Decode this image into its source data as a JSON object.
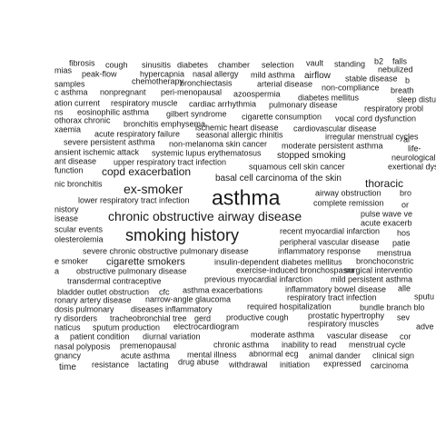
{
  "cloud": {
    "words": [
      "fibrosis",
      "cough",
      "sinusitis",
      "diabetes",
      "chamber",
      "selection",
      "vault",
      "standing",
      "b2",
      "falls",
      "mias",
      "peak-flow",
      "hypercapnia",
      "nasal allergy",
      "mild asthma",
      "airflow",
      "stable disease",
      "nebulized",
      "b",
      "samples",
      "chemotherapy",
      "bronchiectasis",
      "arterial disease",
      "non-compliance",
      "breath",
      "c asthma",
      "nonpregnant",
      "peri-menopausal",
      "azoospermia",
      "diabetes mellitus",
      "sleep distu",
      "ation current",
      "respiratory muscle",
      "cardiac arrhythmia",
      "pulmonary disease",
      "respiratory probl",
      "ns",
      "eosinophilic asthma",
      "gilbert syndrome",
      "cigarette consumption",
      "vocal cord dysfunction",
      "othorax chronic",
      "bronchitis emphysema",
      "ischemic heart disease",
      "cardiovascular disease",
      "xaemia",
      "acute respiratory failure",
      "seasonal allergic rhinitis",
      "irregular menstrual cycles",
      "al",
      "severe persistent asthma",
      "non-melanoma skin cancer",
      "moderate persistent asthma",
      "life-",
      "ansient ischemic attack",
      "systemic lupus erythematosus",
      "stopped smoking",
      "neurological",
      "ant disease",
      "upper respiratory tract infection",
      "squamous cell skin cancer",
      "exertional dys",
      "function",
      "copd exacerbation",
      "basal cell carcinoma of the skin",
      "thoracic",
      "nic bronchitis",
      "ex-smoker",
      "asthma",
      "airway obstruction",
      "bro",
      "lower respiratory tract infection",
      "complete remission",
      "or",
      "nistory",
      "chronic obstructive airway disease",
      "pulse wave ve",
      "isease",
      "acute exacerb",
      "scular events",
      "recent myocardial infarction",
      "hos",
      "olesterolemia",
      "smoking history",
      "peripheral vascular disease",
      "patie",
      "severe chronic obstructive pulmonary disease",
      "inflammatory response",
      "menstrua",
      "e smoker",
      "cigarette smokers",
      "insulin-dependent diabetes mellitus",
      "bronchoconstric",
      "a",
      "obstructive pulmonary disease",
      "exercise-induced bronchospasm",
      "surgical interventio",
      "transdermal contraceptive",
      "previous myocardial infarction",
      "mild persistent asthma",
      "bladder outlet obstruction",
      "cfc",
      "asthma exacerbations",
      "inflammatory bowel disease",
      "alle",
      "ronary artery disease",
      "narrow-angle glaucoma",
      "respiratory tract infection",
      "sputu",
      "dosis pulmonary",
      "diseases inflammatory",
      "required hospitalization",
      "bundle branch blo",
      "ry disorders",
      "tracheobronchial tree",
      "gerd",
      "productive cough",
      "prostatic hypertrophy",
      "sev",
      "naticus",
      "sputum production",
      "electrocardiogram",
      "respiratory muscles",
      "adve",
      "a",
      "patient condition",
      "diurnal variation",
      "moderate asthma",
      "vascular disease",
      "cor",
      "nasal polyposis",
      "premenopausal",
      "chronic asthma",
      "inability to read",
      "menstrual cycle",
      "gnancy",
      "acute asthma",
      "mental illness",
      "abnormal ecg",
      "animal dander",
      "clinical sign",
      "time",
      "resistance",
      "lactating",
      "drug abuse",
      "withdrawal",
      "initiation",
      "expressed",
      "carcinoma"
    ]
  }
}
